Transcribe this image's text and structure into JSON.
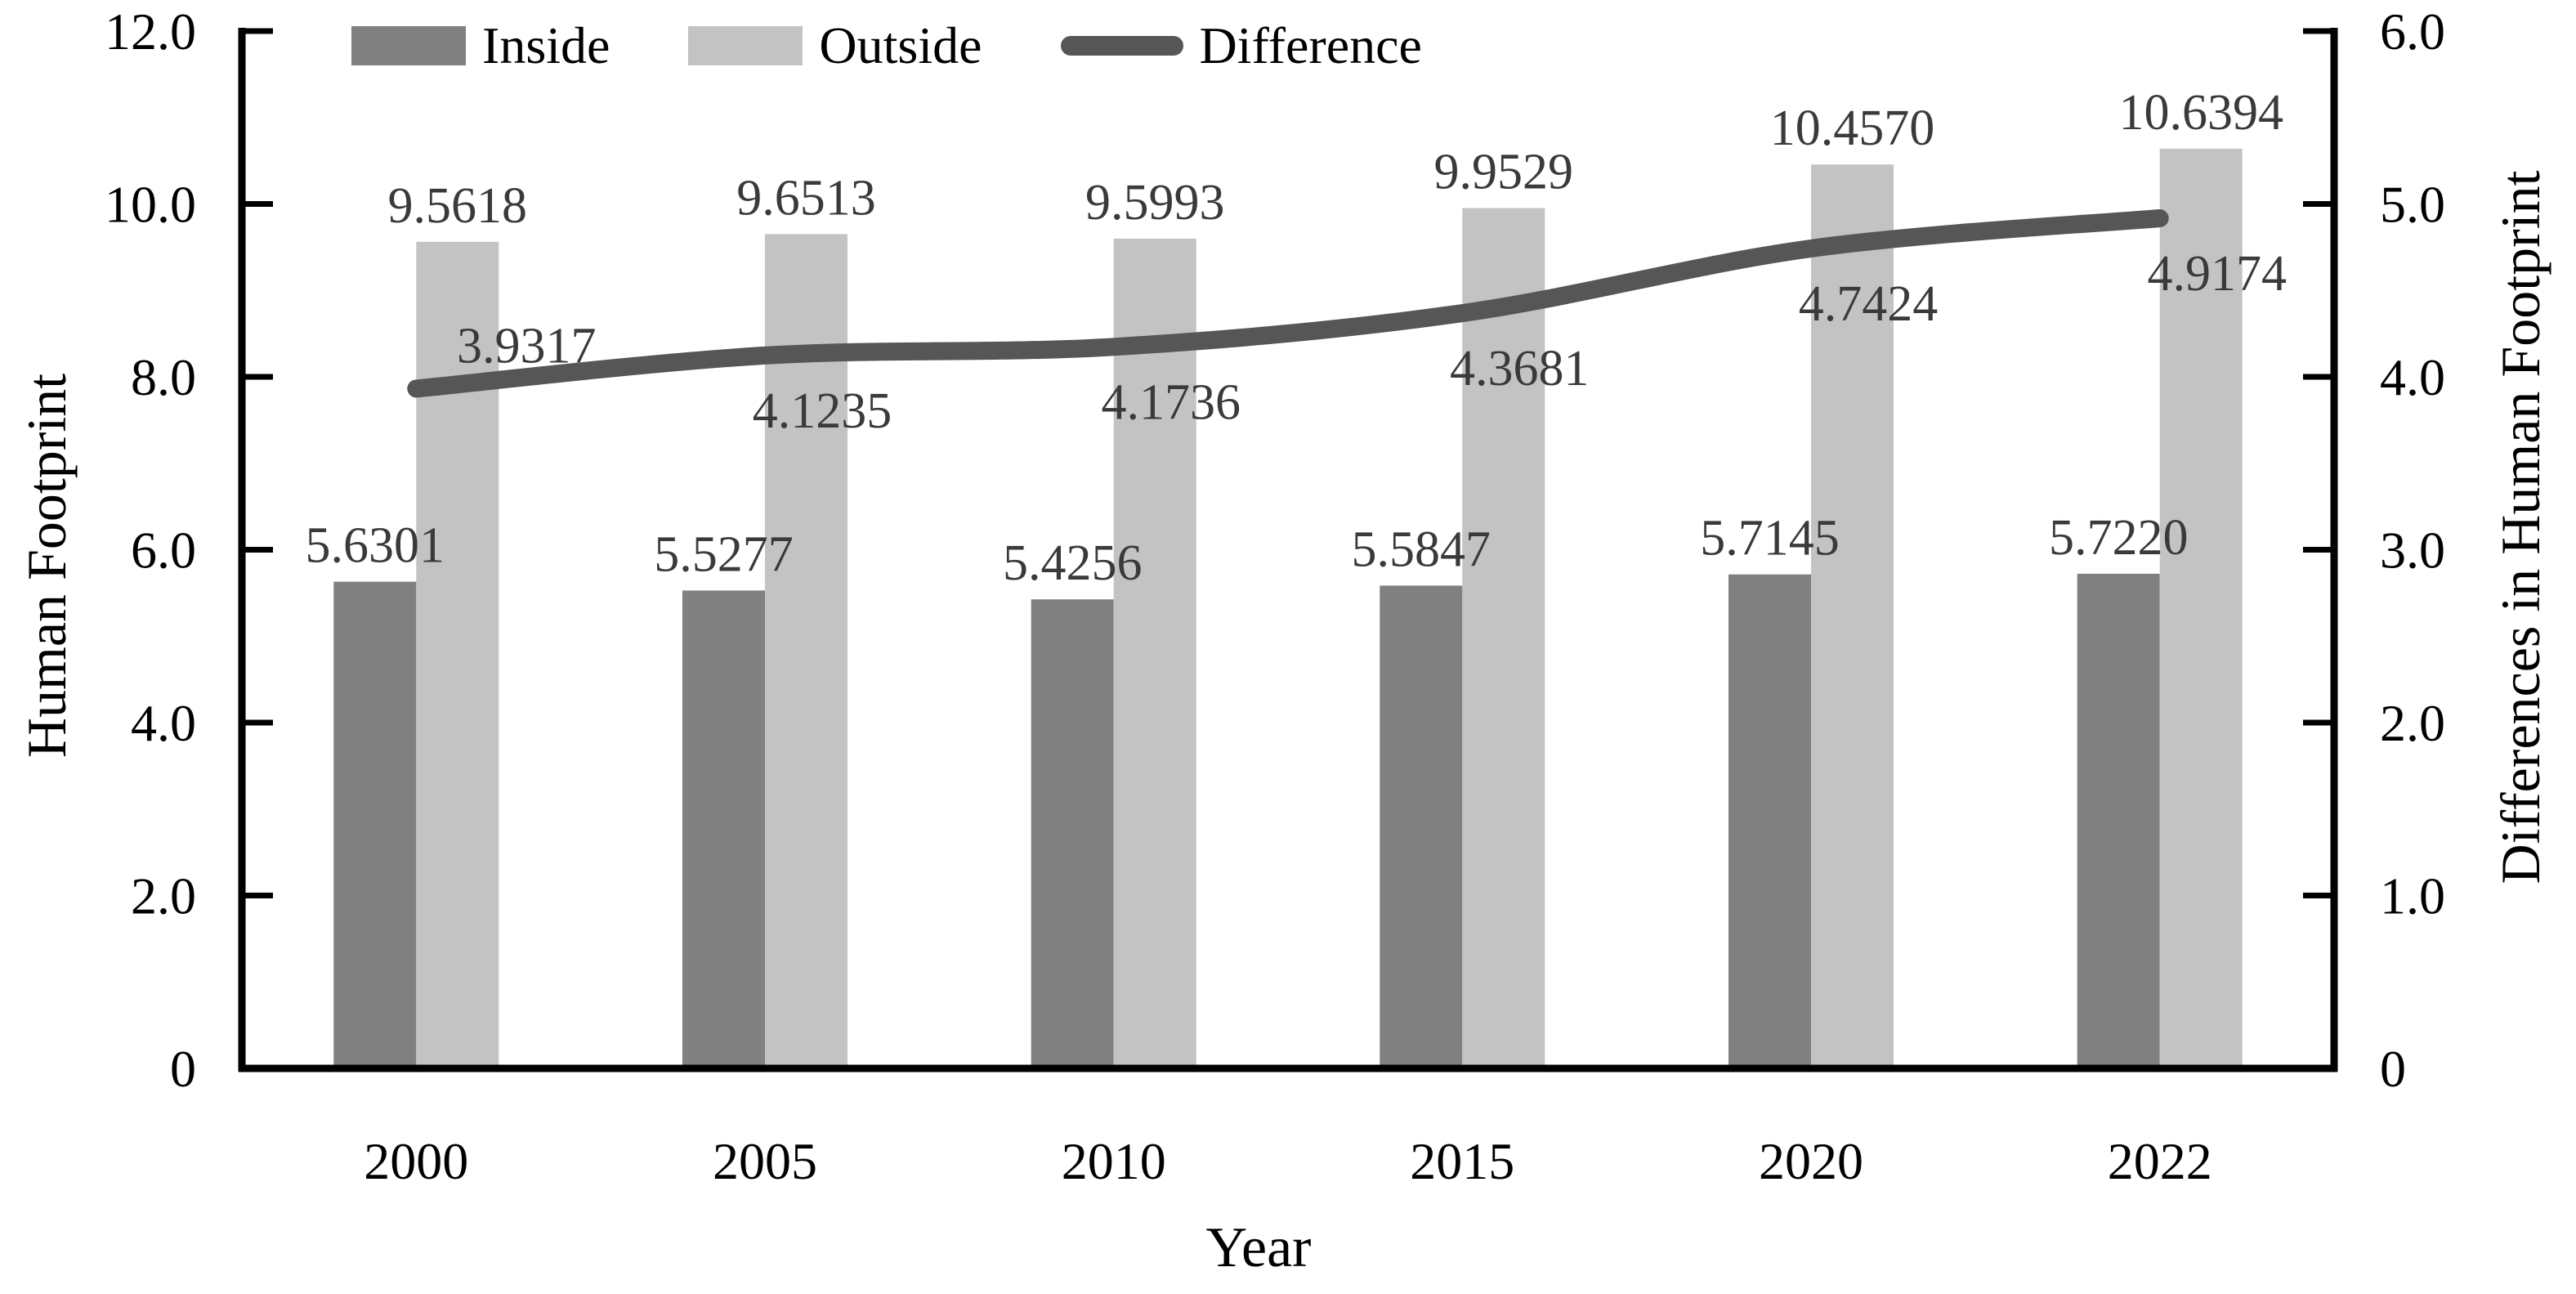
{
  "chart_data": {
    "type": "bar",
    "subtype": "grouped-bars-with-line-overlay",
    "categories": [
      "2000",
      "2005",
      "2010",
      "2015",
      "2020",
      "2022"
    ],
    "series": [
      {
        "name": "Inside",
        "render": "bar",
        "axis": "left",
        "color": "#808080",
        "values": [
          5.6301,
          5.5277,
          5.4256,
          5.5847,
          5.7145,
          5.722
        ],
        "labels": [
          "5.6301",
          "5.5277",
          "5.4256",
          "5.5847",
          "5.7145",
          "5.7220"
        ]
      },
      {
        "name": "Outside",
        "render": "bar",
        "axis": "left",
        "color": "#c3c3c3",
        "values": [
          9.5618,
          9.6513,
          9.5993,
          9.9529,
          10.457,
          10.6394
        ],
        "labels": [
          "9.5618",
          "9.6513",
          "9.5993",
          "9.9529",
          "10.4570",
          "10.6394"
        ]
      },
      {
        "name": "Difference",
        "render": "line",
        "axis": "right",
        "color": "#565656",
        "values": [
          3.9317,
          4.1235,
          4.1736,
          4.3681,
          4.7424,
          4.9174
        ],
        "labels": [
          "3.9317",
          "4.1235",
          "4.1736",
          "4.3681",
          "4.7424",
          "4.9174"
        ]
      }
    ],
    "left_axis": {
      "title": "Human Footprint",
      "min": 0,
      "max": 12,
      "tick_labels": [
        "0",
        "2.0",
        "4.0",
        "6.0",
        "8.0",
        "10.0",
        "12.0"
      ]
    },
    "right_axis": {
      "title": "Differences in Human Footprint",
      "min": 0,
      "max": 6,
      "tick_labels": [
        "0",
        "1.0",
        "2.0",
        "3.0",
        "4.0",
        "5.0",
        "6.0"
      ]
    },
    "x_axis": {
      "title": "Year"
    },
    "legend": {
      "position": "top",
      "items": [
        {
          "label": "Inside",
          "marker": "swatch",
          "color": "#808080"
        },
        {
          "label": "Outside",
          "marker": "swatch",
          "color": "#c3c3c3"
        },
        {
          "label": "Difference",
          "marker": "line",
          "color": "#565656"
        }
      ]
    },
    "grid": false,
    "background": "#ffffff",
    "axis_color": "#000000",
    "data_label_color": "#3a3a3a"
  }
}
